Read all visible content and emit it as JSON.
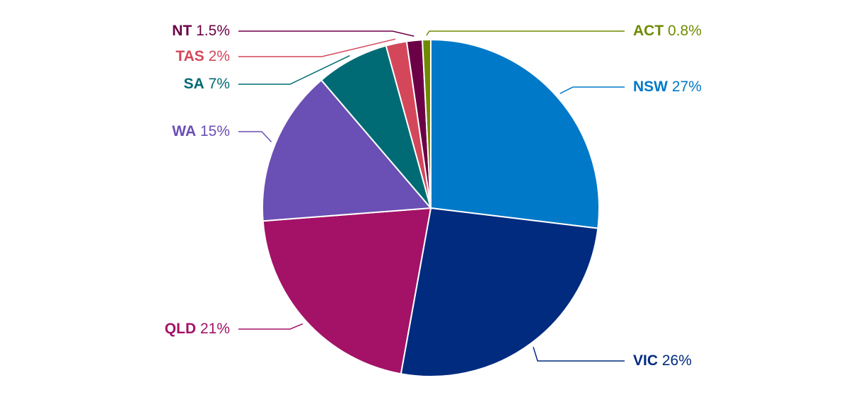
{
  "chart_data": {
    "type": "pie",
    "categories": [
      "NSW",
      "VIC",
      "QLD",
      "WA",
      "SA",
      "TAS",
      "NT",
      "ACT"
    ],
    "values": [
      27,
      26,
      21,
      15,
      7,
      2,
      1.5,
      0.8
    ],
    "value_labels": [
      "27%",
      "26%",
      "21%",
      "15%",
      "7%",
      "2%",
      "1.5%",
      "0.8%"
    ],
    "colors": [
      "#0079c8",
      "#002b7f",
      "#a31266",
      "#6a4fb4",
      "#006b74",
      "#d4475a",
      "#6b0046",
      "#6e8a00"
    ]
  }
}
